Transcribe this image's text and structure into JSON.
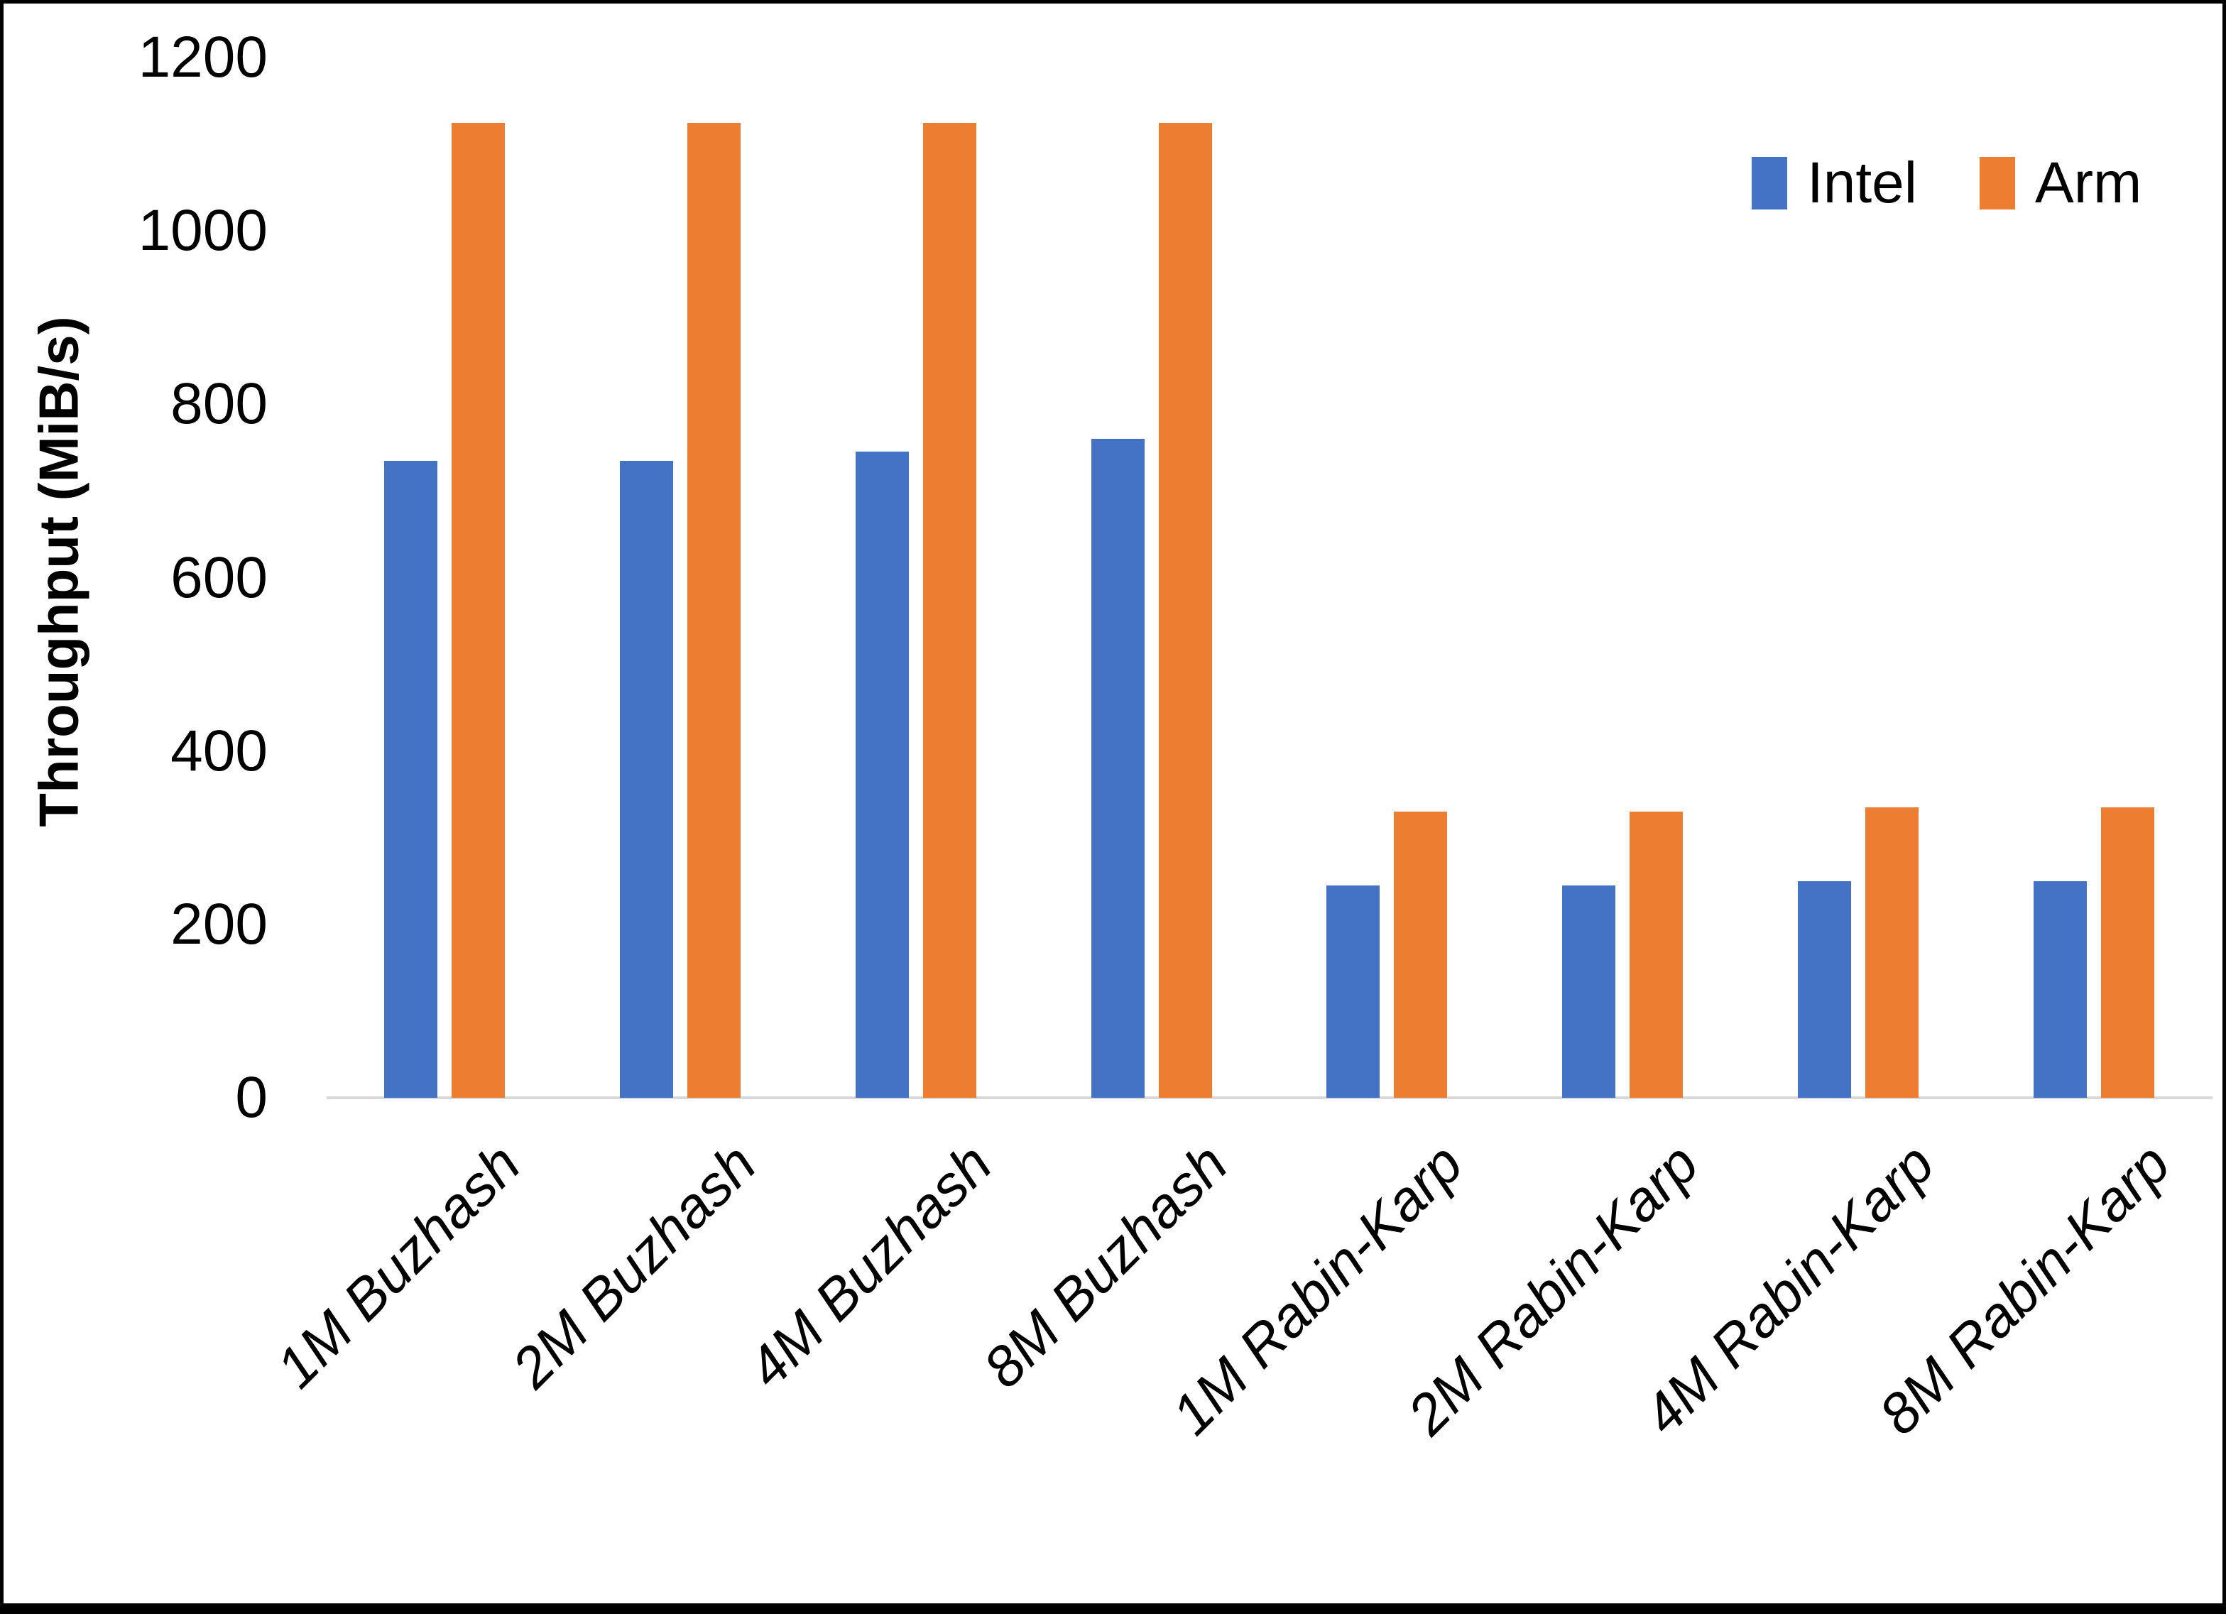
{
  "chart_data": {
    "type": "bar",
    "title": "",
    "xlabel": "",
    "ylabel": "Throughput (MiB/s)",
    "categories": [
      "1M Buzhash",
      "2M Buzhash",
      "4M Buzhash",
      "8M Buzhash",
      "1M Rabin-Karp",
      "2M Rabin-Karp",
      "4M Rabin-Karp",
      "8M Rabin-Karp"
    ],
    "series": [
      {
        "name": "Intel",
        "color": "#4472C4",
        "values": [
          735,
          735,
          745,
          760,
          245,
          245,
          250,
          250
        ]
      },
      {
        "name": "Arm",
        "color": "#ED7D31",
        "values": [
          1125,
          1125,
          1125,
          1125,
          330,
          330,
          335,
          335
        ]
      }
    ],
    "ylim": [
      0,
      1200
    ],
    "yticks": [
      0,
      200,
      400,
      600,
      800,
      1000,
      1200
    ],
    "grid": false,
    "legend_position": "top-right",
    "axis_line_color": "#D9D9D9",
    "frame_color": "#000000",
    "text_color": "#000000"
  }
}
